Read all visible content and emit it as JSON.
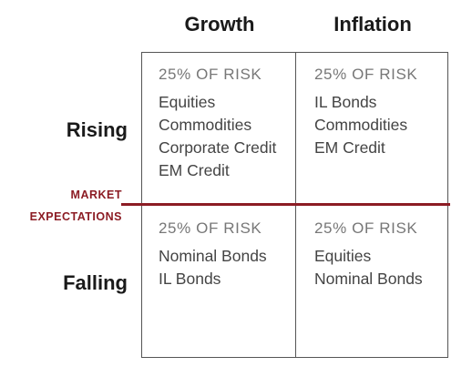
{
  "columns": [
    "Growth",
    "Inflation"
  ],
  "rows": [
    "Rising",
    "Falling"
  ],
  "axis_label": [
    "MARKET",
    "EXPECTATIONS"
  ],
  "cells": {
    "rising_growth": {
      "risk": "25% OF RISK",
      "items": [
        "Equities",
        "Commodities",
        "Corporate Credit",
        "EM Credit"
      ]
    },
    "rising_inflation": {
      "risk": "25% OF RISK",
      "items": [
        "IL Bonds",
        "Commodities",
        "EM Credit"
      ]
    },
    "falling_growth": {
      "risk": "25% OF RISK",
      "items": [
        "Nominal Bonds",
        "IL Bonds"
      ]
    },
    "falling_inflation": {
      "risk": "25% OF RISK",
      "items": [
        "Equities",
        "Nominal Bonds"
      ]
    }
  },
  "colors": {
    "accent": "#8c1c24",
    "grid": "#555555"
  }
}
